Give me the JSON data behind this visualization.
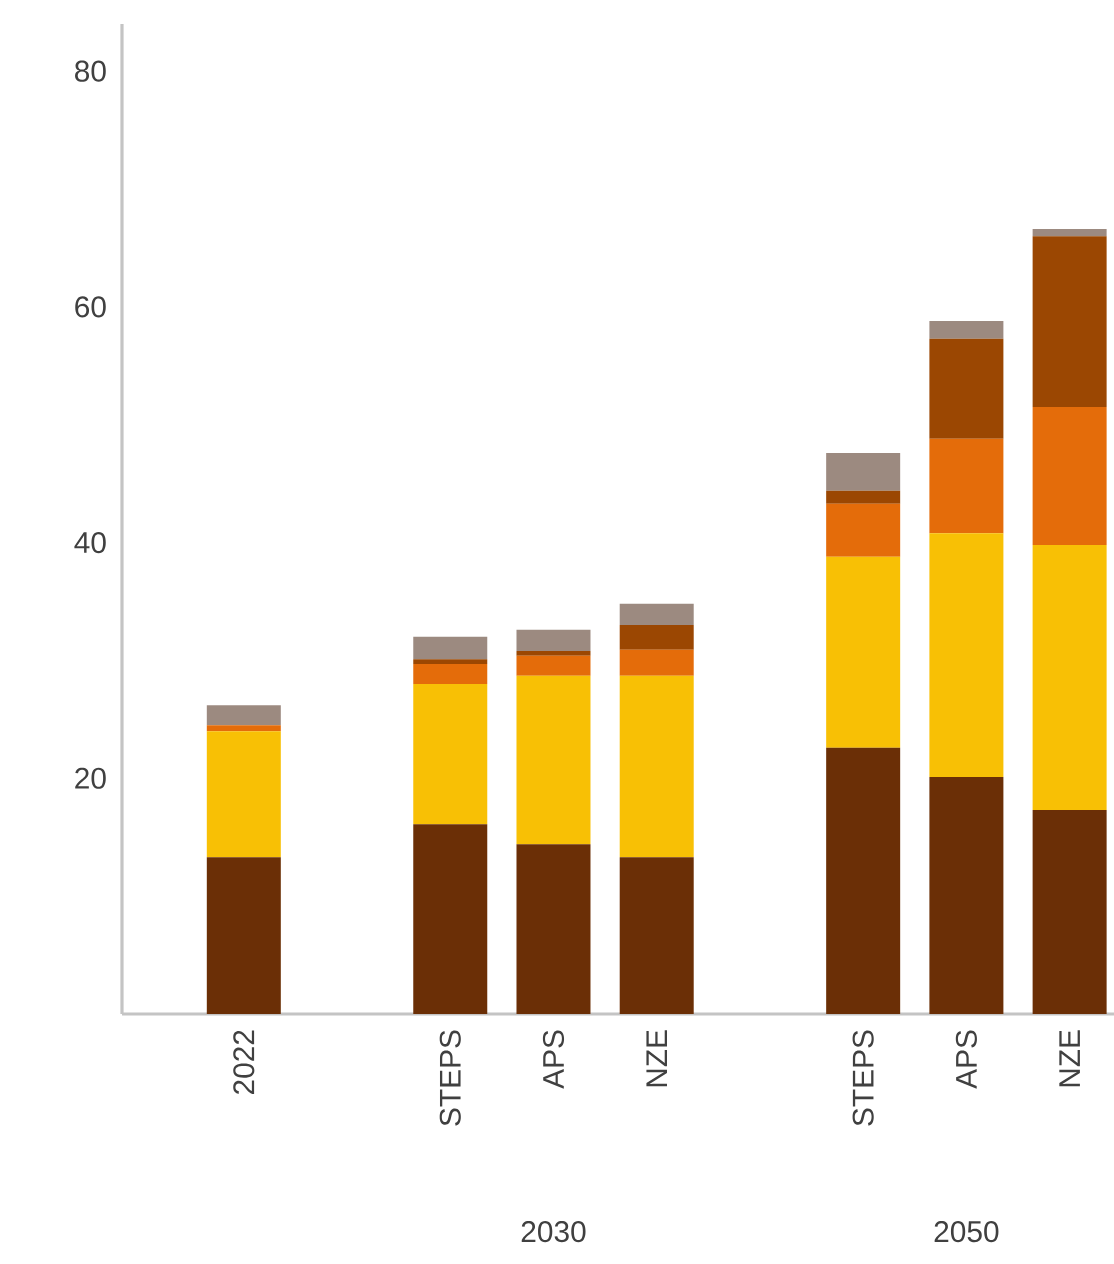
{
  "chart_data": {
    "type": "bar",
    "stacked": true,
    "categories": [
      "2022",
      null,
      "STEPS",
      "APS",
      "NZE",
      null,
      "STEPS",
      "APS",
      "NZE"
    ],
    "series": [
      {
        "color": "#6b2f06",
        "values": [
          13.3,
          null,
          16.1,
          14.4,
          13.3,
          null,
          22.6,
          20.1,
          17.3
        ]
      },
      {
        "color": "#f8c005",
        "values": [
          10.7,
          null,
          11.9,
          14.3,
          15.4,
          null,
          16.2,
          20.7,
          22.5
        ]
      },
      {
        "color": "#e46c0a",
        "values": [
          0.5,
          null,
          1.7,
          1.7,
          2.2,
          null,
          4.5,
          8.0,
          11.7
        ]
      },
      {
        "color": "#9b4702",
        "values": [
          0,
          null,
          0.4,
          0.4,
          2.1,
          null,
          1.1,
          8.5,
          14.5
        ]
      },
      {
        "color": "#9c8a80",
        "values": [
          1.7,
          null,
          1.9,
          1.8,
          1.8,
          null,
          3.2,
          1.5,
          0.6
        ]
      }
    ],
    "annotations": [
      "2030",
      "2050"
    ],
    "ylim": [
      0,
      84
    ],
    "yticks": [
      20,
      40,
      60,
      80
    ],
    "grid": false
  }
}
